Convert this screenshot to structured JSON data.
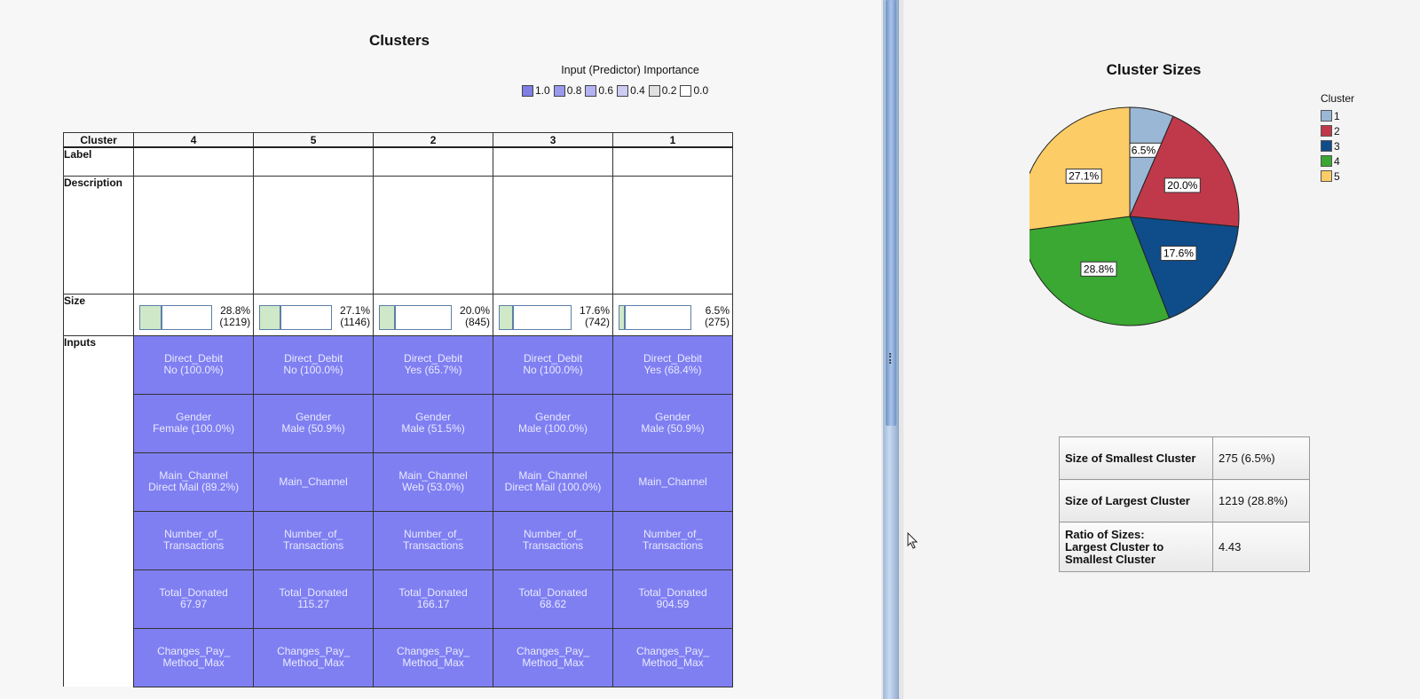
{
  "clusters_view": {
    "title": "Clusters",
    "importance_title": "Input (Predictor) Importance",
    "importance_legend": [
      {
        "label": "1.0",
        "color": "#7f7fe6"
      },
      {
        "label": "0.8",
        "color": "#9999ee"
      },
      {
        "label": "0.6",
        "color": "#b3b3f2"
      },
      {
        "label": "0.4",
        "color": "#ccccf5"
      },
      {
        "label": "0.2",
        "color": "#e0e0e0"
      },
      {
        "label": "0.0",
        "color": "#ffffff"
      }
    ],
    "header_label": "Cluster",
    "row_labels": {
      "label": "Label",
      "description": "Description",
      "size": "Size",
      "inputs": "Inputs"
    },
    "columns": [
      {
        "id": "4",
        "size_pct_text": "28.8%",
        "size_count_text": "(1219)",
        "fraction": 0.288,
        "inputs": [
          "Direct_Debit\nNo (100.0%)",
          "Gender\nFemale (100.0%)",
          "Main_Channel\nDirect Mail (89.2%)",
          "Number_of_\nTransactions",
          "Total_Donated\n67.97",
          "Changes_Pay_\nMethod_Max"
        ]
      },
      {
        "id": "5",
        "size_pct_text": "27.1%",
        "size_count_text": "(1146)",
        "fraction": 0.271,
        "inputs": [
          "Direct_Debit\nNo (100.0%)",
          "Gender\nMale (50.9%)",
          "Main_Channel",
          "Number_of_\nTransactions",
          "Total_Donated\n115.27",
          "Changes_Pay_\nMethod_Max"
        ]
      },
      {
        "id": "2",
        "size_pct_text": "20.0%",
        "size_count_text": "(845)",
        "fraction": 0.2,
        "inputs": [
          "Direct_Debit\nYes (65.7%)",
          "Gender\nMale (51.5%)",
          "Main_Channel\nWeb (53.0%)",
          "Number_of_\nTransactions",
          "Total_Donated\n166.17",
          "Changes_Pay_\nMethod_Max"
        ]
      },
      {
        "id": "3",
        "size_pct_text": "17.6%",
        "size_count_text": "(742)",
        "fraction": 0.176,
        "inputs": [
          "Direct_Debit\nNo (100.0%)",
          "Gender\nMale (100.0%)",
          "Main_Channel\nDirect Mail (100.0%)",
          "Number_of_\nTransactions",
          "Total_Donated\n68.62",
          "Changes_Pay_\nMethod_Max"
        ]
      },
      {
        "id": "1",
        "size_pct_text": "6.5%",
        "size_count_text": "(275)",
        "fraction": 0.065,
        "inputs": [
          "Direct_Debit\nYes (68.4%)",
          "Gender\nMale (50.9%)",
          "Main_Channel",
          "Number_of_\nTransactions",
          "Total_Donated\n904.59",
          "Changes_Pay_\nMethod_Max"
        ]
      }
    ]
  },
  "cluster_sizes": {
    "title": "Cluster Sizes",
    "legend_title": "Cluster",
    "stats": [
      {
        "label": "Size of Smallest Cluster",
        "value": "275 (6.5%)"
      },
      {
        "label": "Size of Largest Cluster",
        "value": "1219 (28.8%)"
      },
      {
        "label": "Ratio of Sizes:\nLargest Cluster to\nSmallest Cluster",
        "value": "4.43"
      }
    ]
  },
  "chart_data": {
    "type": "pie",
    "title": "Cluster Sizes",
    "legend_title": "Cluster",
    "categories": [
      "1",
      "2",
      "3",
      "4",
      "5"
    ],
    "values": [
      6.5,
      20.0,
      17.6,
      28.8,
      27.1
    ],
    "labels": [
      "6.5%",
      "20.0%",
      "17.6%",
      "28.8%",
      "27.1%"
    ],
    "colors": [
      "#9ab7d6",
      "#c0394a",
      "#0f4c8a",
      "#3aa832",
      "#fccc66"
    ],
    "legend_position": "right"
  }
}
